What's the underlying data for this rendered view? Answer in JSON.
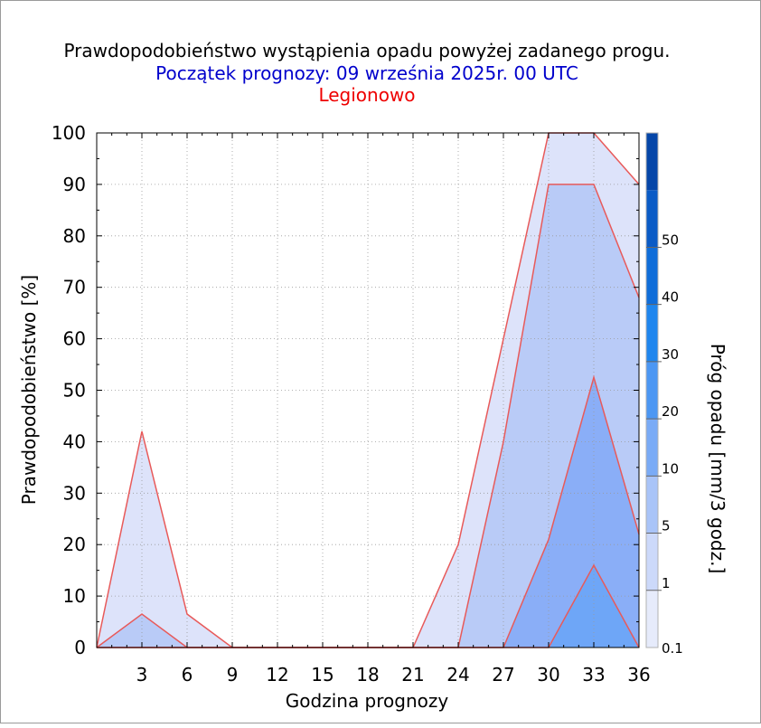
{
  "title": "Prawdopodobieństwo wystąpienia opadu powyżej zadanego progu.",
  "subtitle": "Początek prognozy: 09 września 2025r. 00 UTC",
  "location": "Legionowo",
  "colors": {
    "title": "#000000",
    "subtitle": "#0000cc",
    "location": "#ee0000",
    "outline": "#e85a5a"
  },
  "chart_data": {
    "type": "area",
    "xlabel": "Godzina prognozy",
    "ylabel": "Prawdopodobieństwo [%]",
    "colorbar_label": "Próg opadu [mm/3 godz.]",
    "x": [
      0,
      3,
      6,
      9,
      12,
      15,
      18,
      21,
      24,
      27,
      30,
      33,
      36
    ],
    "x_ticks": [
      "3",
      "6",
      "9",
      "12",
      "15",
      "18",
      "21",
      "24",
      "27",
      "30",
      "33",
      "36"
    ],
    "xlim": [
      0,
      36
    ],
    "ylim": [
      0,
      100
    ],
    "y_ticks": [
      "0",
      "10",
      "20",
      "30",
      "40",
      "50",
      "60",
      "70",
      "80",
      "90",
      "100"
    ],
    "grid": true,
    "series": [
      {
        "name": "0.1",
        "color": "#dde3fa",
        "values": [
          0,
          42,
          6.5,
          0,
          0,
          0,
          0,
          0,
          20,
          60,
          100,
          100,
          90
        ]
      },
      {
        "name": "1",
        "color": "#b9cbf7",
        "values": [
          0,
          6.5,
          0,
          0,
          0,
          0,
          0,
          0,
          0,
          40,
          90,
          90,
          68
        ]
      },
      {
        "name": "5",
        "color": "#8aaef7",
        "values": [
          0,
          0,
          0,
          0,
          0,
          0,
          0,
          0,
          0,
          0,
          21,
          52.5,
          22
        ]
      },
      {
        "name": "10",
        "color": "#6ea6f7",
        "values": [
          0,
          0,
          0,
          0,
          0,
          0,
          0,
          0,
          0,
          0,
          0,
          16,
          0
        ]
      }
    ],
    "colorbar": {
      "tick_labels": [
        "0.1",
        "1",
        "5",
        "10",
        "20",
        "30",
        "40",
        "50"
      ],
      "colors": [
        "#e6ebfb",
        "#ccd9fa",
        "#a9c4f8",
        "#7aabf6",
        "#4c97f3",
        "#1f86ee",
        "#0f6dd9",
        "#0a5bc6",
        "#0546a8"
      ]
    }
  }
}
